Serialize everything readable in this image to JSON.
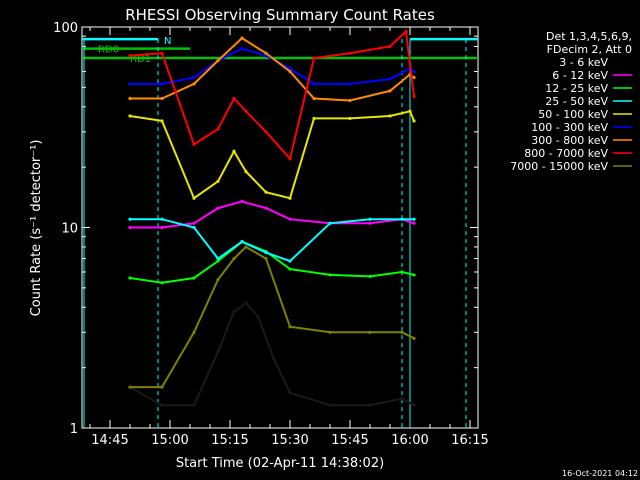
{
  "chart_data": {
    "type": "line",
    "title": "RHESSI Observing Summary Count Rates",
    "xlabel": "Start Time (02-Apr-11 14:38:02)",
    "ylabel": "Count Rate (s⁻¹ detector⁻¹)",
    "y_scale": "log",
    "ylim": [
      1,
      100
    ],
    "xlim": [
      "14:38",
      "16:17"
    ],
    "x_ticks": [
      "14:45",
      "15:00",
      "15:15",
      "15:30",
      "15:45",
      "16:00",
      "16:15"
    ],
    "y_ticks": [
      "1",
      "10",
      "100"
    ],
    "legend_placement": "right",
    "legend_header": [
      "Det 1,3,4,5,6,9,",
      "FDecim 2, Att 0"
    ],
    "series": [
      {
        "name": "3 - 6 keV",
        "color": "#000000",
        "points": [
          [
            "14:50",
            1.6
          ],
          [
            "14:58",
            1.3
          ],
          [
            "15:06",
            1.3
          ],
          [
            "15:12",
            2.4
          ],
          [
            "15:16",
            3.8
          ],
          [
            "15:19",
            4.2
          ],
          [
            "15:22",
            3.6
          ],
          [
            "15:26",
            2.2
          ],
          [
            "15:30",
            1.5
          ],
          [
            "15:40",
            1.3
          ],
          [
            "15:50",
            1.3
          ],
          [
            "15:58",
            1.4
          ],
          [
            "16:01",
            1.3
          ]
        ]
      },
      {
        "name": "6 - 12 keV",
        "color": "#ff00ff",
        "points": [
          [
            "14:50",
            10
          ],
          [
            "14:58",
            10
          ],
          [
            "15:06",
            10.5
          ],
          [
            "15:12",
            12.5
          ],
          [
            "15:18",
            13.5
          ],
          [
            "15:24",
            12.5
          ],
          [
            "15:30",
            11
          ],
          [
            "15:40",
            10.5
          ],
          [
            "15:50",
            10.5
          ],
          [
            "15:58",
            11
          ],
          [
            "16:01",
            10.5
          ]
        ]
      },
      {
        "name": "12 - 25 keV",
        "color": "#00ff00",
        "points": [
          [
            "14:50",
            5.6
          ],
          [
            "14:58",
            5.3
          ],
          [
            "15:06",
            5.6
          ],
          [
            "15:12",
            6.8
          ],
          [
            "15:18",
            8.5
          ],
          [
            "15:24",
            7.6
          ],
          [
            "15:30",
            6.2
          ],
          [
            "15:40",
            5.8
          ],
          [
            "15:50",
            5.7
          ],
          [
            "15:58",
            6
          ],
          [
            "16:01",
            5.8
          ]
        ]
      },
      {
        "name": "25 - 50 keV",
        "color": "#00ffff",
        "points": [
          [
            "14:50",
            11
          ],
          [
            "14:58",
            11
          ],
          [
            "15:06",
            10
          ],
          [
            "15:12",
            7
          ],
          [
            "15:18",
            8.5
          ],
          [
            "15:24",
            7.5
          ],
          [
            "15:30",
            6.8
          ],
          [
            "15:40",
            10.5
          ],
          [
            "15:50",
            11
          ],
          [
            "15:58",
            11
          ],
          [
            "16:01",
            11
          ]
        ]
      },
      {
        "name": "50 - 100 keV",
        "color": "#e6e600",
        "points": [
          [
            "14:50",
            36
          ],
          [
            "14:58",
            34
          ],
          [
            "15:06",
            14
          ],
          [
            "15:12",
            17
          ],
          [
            "15:16",
            24
          ],
          [
            "15:19",
            19
          ],
          [
            "15:24",
            15
          ],
          [
            "15:30",
            14
          ],
          [
            "15:36",
            35
          ],
          [
            "15:45",
            35
          ],
          [
            "15:55",
            36
          ],
          [
            "16:00",
            38
          ],
          [
            "16:01",
            34
          ]
        ]
      },
      {
        "name": "100 - 300 keV",
        "color": "#0000ff",
        "points": [
          [
            "14:50",
            52
          ],
          [
            "14:58",
            52
          ],
          [
            "15:06",
            56
          ],
          [
            "15:12",
            68
          ],
          [
            "15:18",
            78
          ],
          [
            "15:24",
            72
          ],
          [
            "15:30",
            62
          ],
          [
            "15:36",
            52
          ],
          [
            "15:45",
            52
          ],
          [
            "15:55",
            55
          ],
          [
            "16:00",
            62
          ],
          [
            "16:01",
            60
          ]
        ]
      },
      {
        "name": "300 - 800 keV",
        "color": "#ff8c00",
        "points": [
          [
            "14:50",
            44
          ],
          [
            "14:58",
            44
          ],
          [
            "15:06",
            52
          ],
          [
            "15:12",
            68
          ],
          [
            "15:18",
            88
          ],
          [
            "15:24",
            74
          ],
          [
            "15:30",
            60
          ],
          [
            "15:36",
            44
          ],
          [
            "15:45",
            43
          ],
          [
            "15:55",
            48
          ],
          [
            "16:00",
            58
          ],
          [
            "16:01",
            56
          ]
        ]
      },
      {
        "name": "800 - 7000 keV",
        "color": "#ff0000",
        "points": [
          [
            "14:50",
            72
          ],
          [
            "14:58",
            74
          ],
          [
            "15:06",
            26
          ],
          [
            "15:12",
            31
          ],
          [
            "15:16",
            44
          ],
          [
            "15:19",
            38
          ],
          [
            "15:24",
            30
          ],
          [
            "15:30",
            22
          ],
          [
            "15:36",
            70
          ],
          [
            "15:45",
            74
          ],
          [
            "15:55",
            80
          ],
          [
            "15:59",
            95
          ],
          [
            "16:01",
            45
          ]
        ]
      },
      {
        "name": "7000 - 15000 keV",
        "color": "#808000",
        "points": [
          [
            "14:50",
            1.6
          ],
          [
            "14:58",
            1.6
          ],
          [
            "15:06",
            3
          ],
          [
            "15:12",
            5.5
          ],
          [
            "15:16",
            7
          ],
          [
            "15:19",
            8
          ],
          [
            "15:24",
            7
          ],
          [
            "15:30",
            3.2
          ],
          [
            "15:40",
            3
          ],
          [
            "15:50",
            3
          ],
          [
            "15:58",
            3
          ],
          [
            "16:01",
            2.8
          ]
        ]
      }
    ],
    "annotations": [
      {
        "text": "N",
        "color": "#00ffff"
      },
      {
        "text": "RD0",
        "color": "#00c000"
      },
      {
        "text": "RD1",
        "color": "#00c000"
      }
    ],
    "footer_timestamp": "16-Oct-2021 04:12"
  }
}
